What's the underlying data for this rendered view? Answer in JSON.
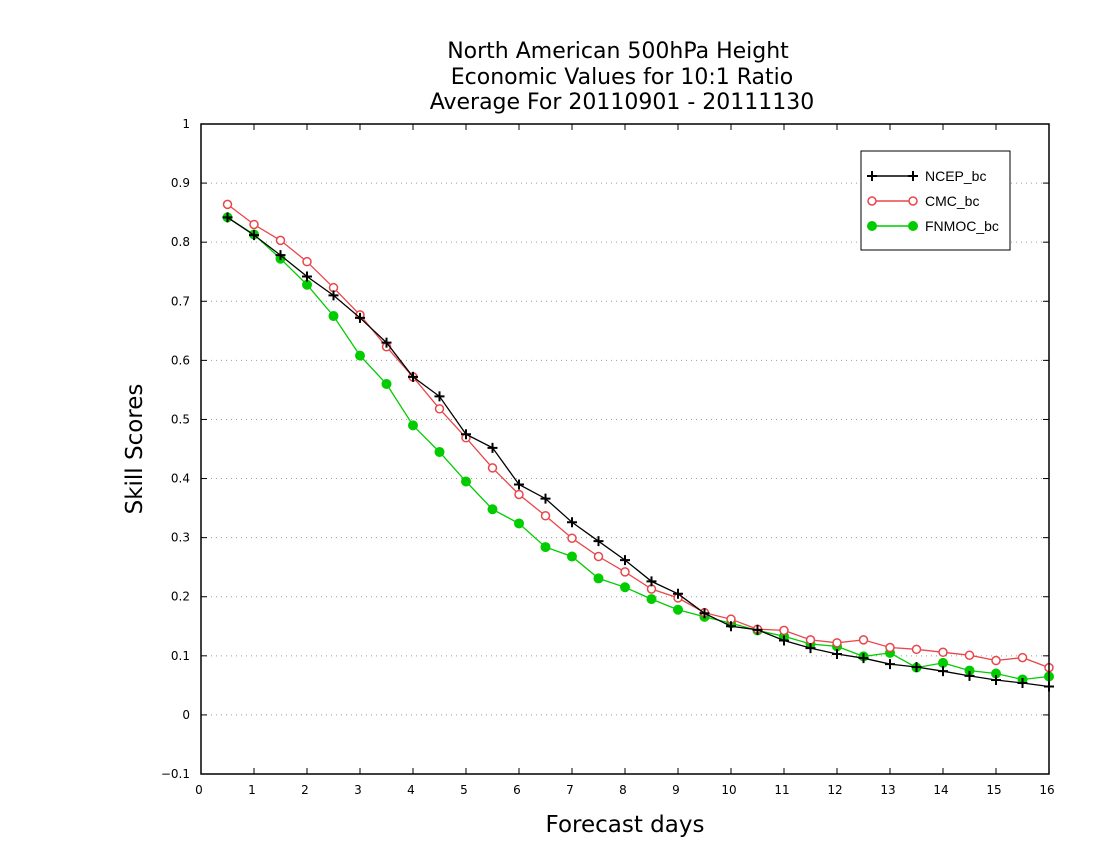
{
  "chart_data": {
    "type": "line",
    "title": [
      "North American 500hPa Height",
      "Economic Values for 10:1 Ratio",
      "Average For 20110901 - 20111130"
    ],
    "xlabel": "Forecast days",
    "ylabel": "Skill Scores",
    "xlim": [
      0,
      16
    ],
    "ylim": [
      -0.1,
      1
    ],
    "xticks": [
      "0",
      "1",
      "2",
      "3",
      "4",
      "5",
      "6",
      "7",
      "8",
      "9",
      "10",
      "11",
      "12",
      "13",
      "14",
      "15",
      "16"
    ],
    "yticks": [
      "−0.1",
      "0",
      "0.1",
      "0.2",
      "0.3",
      "0.4",
      "0.5",
      "0.6",
      "0.7",
      "0.8",
      "0.9",
      "1"
    ],
    "grid": true,
    "legend_position": "top-right",
    "x": [
      0.5,
      1,
      1.5,
      2,
      2.5,
      3,
      3.5,
      4,
      4.5,
      5,
      5.5,
      6,
      6.5,
      7,
      7.5,
      8,
      8.5,
      9,
      9.5,
      10,
      10.5,
      11,
      11.5,
      12,
      12.5,
      13,
      13.5,
      14,
      14.5,
      15,
      15.5,
      16
    ],
    "series": [
      {
        "name": "NCEP_bc",
        "color": "#000000",
        "marker": "plus",
        "values": [
          0.842,
          0.812,
          0.778,
          0.742,
          0.71,
          0.672,
          0.63,
          0.572,
          0.539,
          0.475,
          0.452,
          0.39,
          0.366,
          0.326,
          0.294,
          0.262,
          0.226,
          0.205,
          0.172,
          0.15,
          0.144,
          0.126,
          0.113,
          0.103,
          0.096,
          0.086,
          0.081,
          0.074,
          0.066,
          0.059,
          0.054,
          0.048
        ]
      },
      {
        "name": "CMC_bc",
        "color": "#e8464b",
        "marker": "open-circle",
        "values": [
          0.864,
          0.83,
          0.803,
          0.767,
          0.723,
          0.677,
          0.623,
          0.572,
          0.518,
          0.469,
          0.418,
          0.373,
          0.337,
          0.299,
          0.268,
          0.242,
          0.213,
          0.198,
          0.173,
          0.162,
          0.145,
          0.143,
          0.127,
          0.122,
          0.127,
          0.114,
          0.111,
          0.106,
          0.101,
          0.092,
          0.097,
          0.08
        ]
      },
      {
        "name": "FNMOC_bc",
        "color": "#00cc00",
        "marker": "filled-circle",
        "values": [
          0.842,
          0.813,
          0.772,
          0.728,
          0.675,
          0.608,
          0.56,
          0.49,
          0.445,
          0.395,
          0.348,
          0.324,
          0.284,
          0.268,
          0.231,
          0.216,
          0.196,
          0.178,
          0.166,
          0.155,
          0.143,
          0.133,
          0.12,
          0.116,
          0.099,
          0.105,
          0.08,
          0.088,
          0.075,
          0.07,
          0.06,
          0.065
        ]
      }
    ]
  }
}
